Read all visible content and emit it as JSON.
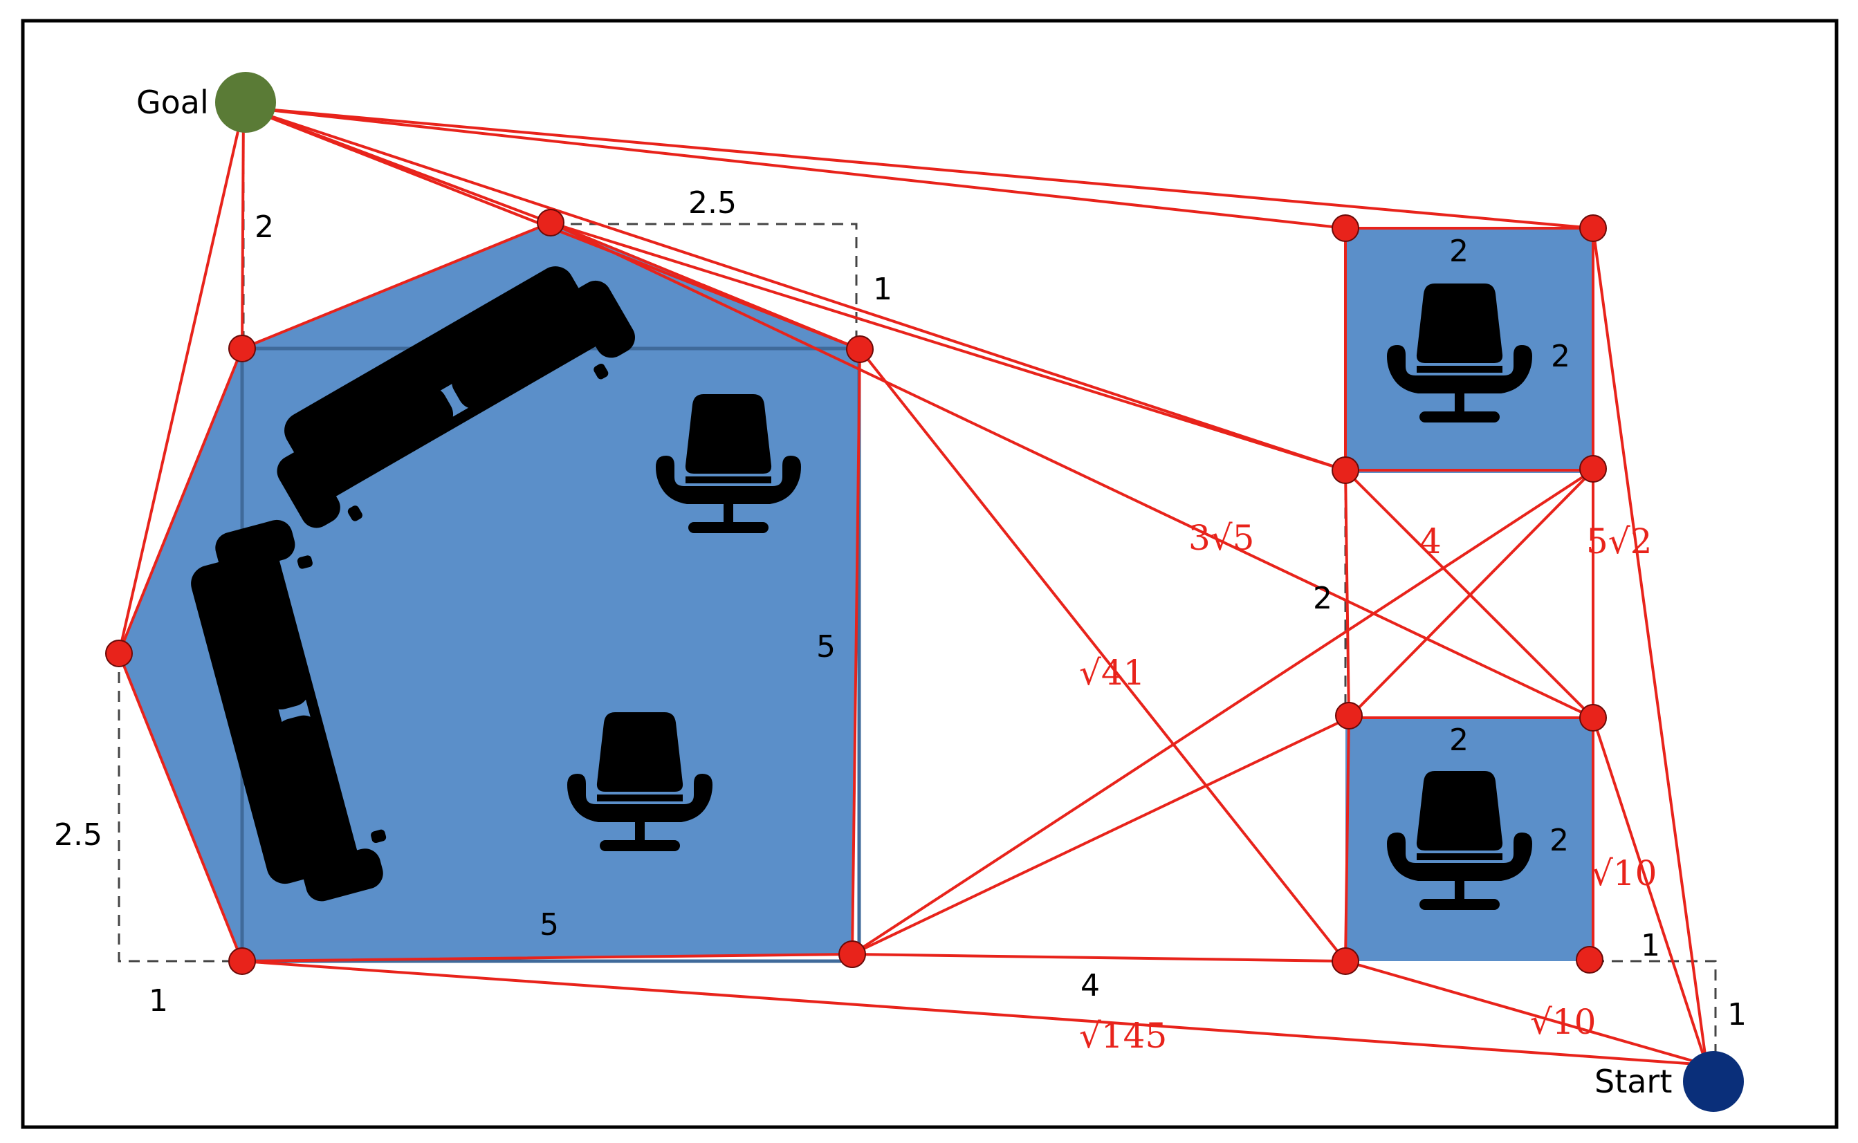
{
  "nodes": {
    "goal_label": "Goal",
    "start_label": "Start"
  },
  "dimensions": {
    "poly_top_width": "2.5",
    "poly_top_offset": "1",
    "goal_to_poly": "2",
    "poly_left_height": "2.5",
    "poly_left_offset": "1",
    "poly_right_side": "5",
    "poly_bottom_side": "5",
    "box_top_width": "2",
    "box_top_height": "2",
    "box_bottom_width": "2",
    "box_bottom_height": "2",
    "gap_between_boxes": "2",
    "bottom_gap": "4",
    "start_offset_x": "1",
    "start_offset_y": "1"
  },
  "edge_costs": {
    "root3_5": "3√5",
    "diag_4": "4",
    "root5_2": "5√2",
    "root41": "√41",
    "root10_right": "√10",
    "root10_bottom": "√10",
    "root145": "√145"
  },
  "colors": {
    "obstacle_fill": "#5b8fc9",
    "edge_red": "#e8231b",
    "goal_green": "#5a7b36",
    "start_blue": "#0a2f7a"
  }
}
